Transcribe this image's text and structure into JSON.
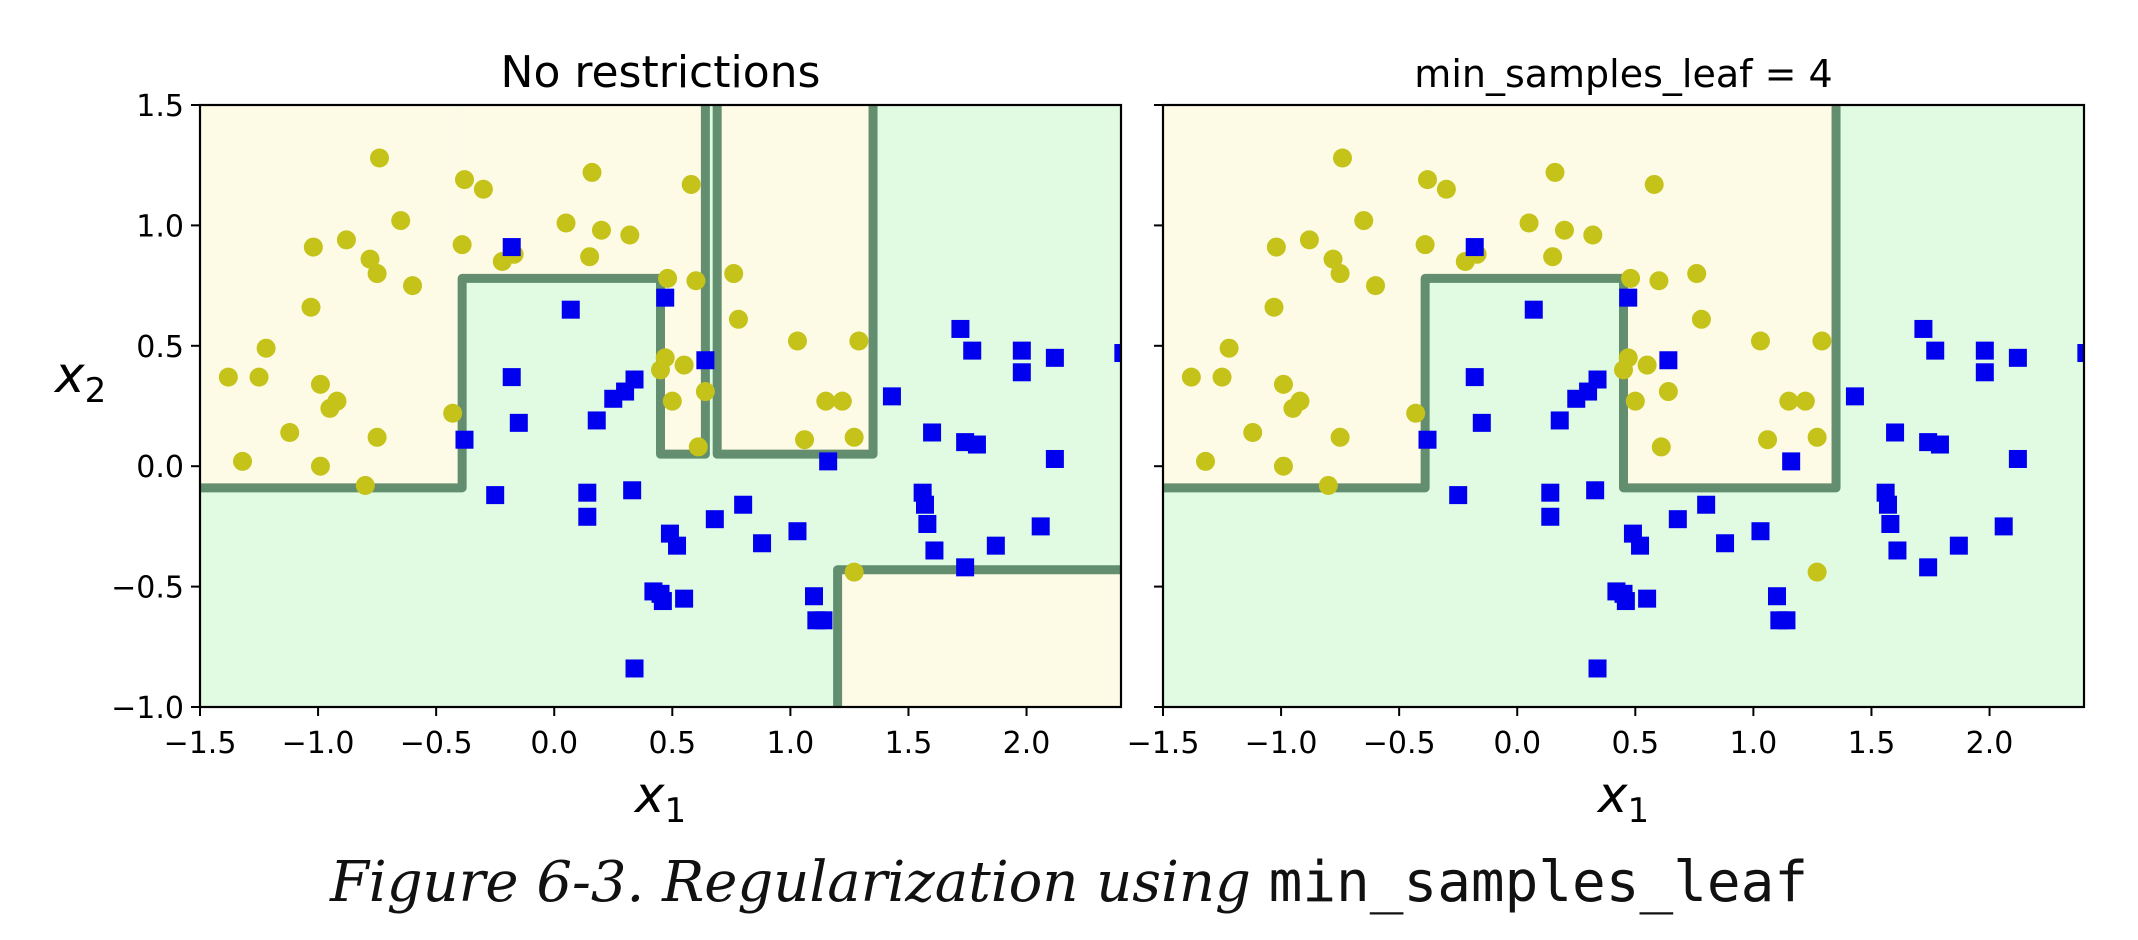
{
  "chart_data": [
    {
      "type": "scatter",
      "title": "No restrictions",
      "xlabel": "x",
      "xlabel_sub": "1",
      "ylabel": "x",
      "ylabel_sub": "2",
      "xlim": [
        -1.5,
        2.4
      ],
      "ylim": [
        -1.0,
        1.5
      ],
      "xticks": [
        -1.5,
        -1.0,
        -0.5,
        0.0,
        0.5,
        1.0,
        1.5,
        2.0
      ],
      "xtick_labels": [
        "−1.5",
        "−1.0",
        "−0.5",
        "0.0",
        "0.5",
        "1.0",
        "1.5",
        "2.0"
      ],
      "yticks": [
        -1.0,
        -0.5,
        0.0,
        0.5,
        1.0,
        1.5
      ],
      "ytick_labels": [
        "−1.0",
        "−0.5",
        "0.0",
        "0.5",
        "1.0",
        "1.5"
      ],
      "regions": [
        {
          "class": "yellow",
          "x0": -1.5,
          "x1": -0.39,
          "y0": -0.09,
          "y1": 1.5
        },
        {
          "class": "yellow",
          "x0": -0.39,
          "x1": 0.45,
          "y0": 0.78,
          "y1": 1.5
        },
        {
          "class": "yellow",
          "x0": 0.45,
          "x1": 0.64,
          "y0": 0.05,
          "y1": 1.5
        },
        {
          "class": "yellow",
          "x0": 0.69,
          "x1": 1.35,
          "y0": 0.05,
          "y1": 1.5
        },
        {
          "class": "yellow",
          "x0": 1.2,
          "x1": 2.4,
          "y0": -1.0,
          "y1": -0.43
        }
      ],
      "boundaries": [
        [
          [
            -1.5,
            -0.09
          ],
          [
            -0.39,
            -0.09
          ],
          [
            -0.39,
            0.78
          ],
          [
            0.45,
            0.78
          ],
          [
            0.45,
            0.05
          ],
          [
            0.64,
            0.05
          ],
          [
            0.64,
            1.5
          ]
        ],
        [
          [
            0.69,
            1.5
          ],
          [
            0.69,
            0.05
          ],
          [
            1.35,
            0.05
          ],
          [
            1.35,
            1.5
          ]
        ],
        [
          [
            1.2,
            -1.0
          ],
          [
            1.2,
            -0.43
          ],
          [
            2.4,
            -0.43
          ]
        ]
      ]
    },
    {
      "type": "scatter",
      "title": "min_samples_leaf = 4",
      "xlabel": "x",
      "xlabel_sub": "1",
      "ylabel": "",
      "ylabel_sub": "",
      "xlim": [
        -1.5,
        2.4
      ],
      "ylim": [
        -1.0,
        1.5
      ],
      "xticks": [
        -1.5,
        -1.0,
        -0.5,
        0.0,
        0.5,
        1.0,
        1.5,
        2.0
      ],
      "xtick_labels": [
        "−1.5",
        "−1.0",
        "−0.5",
        "0.0",
        "0.5",
        "1.0",
        "1.5",
        "2.0"
      ],
      "yticks": [
        -1.0,
        -0.5,
        0.0,
        0.5,
        1.0,
        1.5
      ],
      "ytick_labels": [],
      "regions": [
        {
          "class": "yellow",
          "x0": -1.5,
          "x1": -0.39,
          "y0": -0.09,
          "y1": 1.5
        },
        {
          "class": "yellow",
          "x0": -0.39,
          "x1": 0.45,
          "y0": 0.78,
          "y1": 1.5
        },
        {
          "class": "yellow",
          "x0": 0.45,
          "x1": 1.35,
          "y0": -0.09,
          "y1": 1.5
        }
      ],
      "boundaries": [
        [
          [
            -1.5,
            -0.09
          ],
          [
            -0.39,
            -0.09
          ],
          [
            -0.39,
            0.78
          ],
          [
            0.45,
            0.78
          ],
          [
            0.45,
            -0.09
          ],
          [
            1.35,
            -0.09
          ],
          [
            1.35,
            1.5
          ]
        ]
      ]
    }
  ],
  "shared_points": {
    "yellow_circles": [
      [
        -1.38,
        0.37
      ],
      [
        -1.25,
        0.37
      ],
      [
        -1.32,
        0.02
      ],
      [
        -1.22,
        0.49
      ],
      [
        -1.12,
        0.14
      ],
      [
        -1.02,
        0.91
      ],
      [
        -1.03,
        0.66
      ],
      [
        -0.99,
        0.34
      ],
      [
        -0.99,
        0.0
      ],
      [
        -0.95,
        0.24
      ],
      [
        -0.92,
        0.27
      ],
      [
        -0.88,
        0.94
      ],
      [
        -0.78,
        0.86
      ],
      [
        -0.75,
        0.8
      ],
      [
        -0.75,
        0.12
      ],
      [
        -0.74,
        1.28
      ],
      [
        -0.8,
        -0.08
      ],
      [
        -0.65,
        1.02
      ],
      [
        -0.6,
        0.75
      ],
      [
        -0.43,
        0.22
      ],
      [
        -0.38,
        1.19
      ],
      [
        -0.39,
        0.92
      ],
      [
        -0.3,
        1.15
      ],
      [
        -0.22,
        0.85
      ],
      [
        -0.17,
        0.88
      ],
      [
        0.05,
        1.01
      ],
      [
        0.15,
        0.87
      ],
      [
        0.16,
        1.22
      ],
      [
        0.2,
        0.98
      ],
      [
        0.32,
        0.96
      ],
      [
        0.45,
        0.4
      ],
      [
        0.47,
        0.45
      ],
      [
        0.48,
        0.78
      ],
      [
        0.5,
        0.27
      ],
      [
        0.55,
        0.42
      ],
      [
        0.58,
        1.17
      ],
      [
        0.6,
        0.77
      ],
      [
        0.61,
        0.08
      ],
      [
        0.64,
        0.31
      ],
      [
        0.76,
        0.8
      ],
      [
        0.78,
        0.61
      ],
      [
        1.03,
        0.52
      ],
      [
        1.06,
        0.11
      ],
      [
        1.15,
        0.27
      ],
      [
        1.22,
        0.27
      ],
      [
        1.27,
        0.12
      ],
      [
        1.29,
        0.52
      ],
      [
        1.27,
        -0.44
      ]
    ],
    "blue_squares": [
      [
        -0.38,
        0.11
      ],
      [
        -0.25,
        -0.12
      ],
      [
        -0.18,
        0.91
      ],
      [
        -0.18,
        0.37
      ],
      [
        -0.15,
        0.18
      ],
      [
        0.07,
        0.65
      ],
      [
        0.14,
        -0.11
      ],
      [
        0.14,
        -0.21
      ],
      [
        0.18,
        0.19
      ],
      [
        0.25,
        0.28
      ],
      [
        0.3,
        0.31
      ],
      [
        0.34,
        0.36
      ],
      [
        0.33,
        -0.1
      ],
      [
        0.34,
        -0.84
      ],
      [
        0.42,
        -0.52
      ],
      [
        0.45,
        -0.53
      ],
      [
        0.46,
        -0.56
      ],
      [
        0.47,
        0.7
      ],
      [
        0.49,
        -0.28
      ],
      [
        0.52,
        -0.33
      ],
      [
        0.55,
        -0.55
      ],
      [
        0.64,
        0.44
      ],
      [
        0.68,
        -0.22
      ],
      [
        0.8,
        -0.16
      ],
      [
        0.88,
        -0.32
      ],
      [
        1.03,
        -0.27
      ],
      [
        1.1,
        -0.54
      ],
      [
        1.11,
        -0.64
      ],
      [
        1.14,
        -0.64
      ],
      [
        1.16,
        0.02
      ],
      [
        1.43,
        0.29
      ],
      [
        1.56,
        -0.11
      ],
      [
        1.57,
        -0.16
      ],
      [
        1.58,
        -0.24
      ],
      [
        1.6,
        0.14
      ],
      [
        1.61,
        -0.35
      ],
      [
        1.72,
        0.57
      ],
      [
        1.74,
        -0.42
      ],
      [
        1.74,
        0.1
      ],
      [
        1.77,
        0.48
      ],
      [
        1.79,
        0.09
      ],
      [
        1.87,
        -0.33
      ],
      [
        1.98,
        0.48
      ],
      [
        1.98,
        0.39
      ],
      [
        2.06,
        -0.25
      ],
      [
        2.12,
        0.45
      ],
      [
        2.12,
        0.03
      ],
      [
        2.41,
        0.47
      ]
    ]
  },
  "colors": {
    "yellow_region": "#fdfbe6",
    "green_region": "#e0fbe2",
    "boundary": "#4a7a5a",
    "yellow_point": "#c5c21a",
    "blue_point": "#0000ee"
  },
  "caption": {
    "text": "Figure 6-3. Regularization using ",
    "code": "min_samples_leaf"
  }
}
